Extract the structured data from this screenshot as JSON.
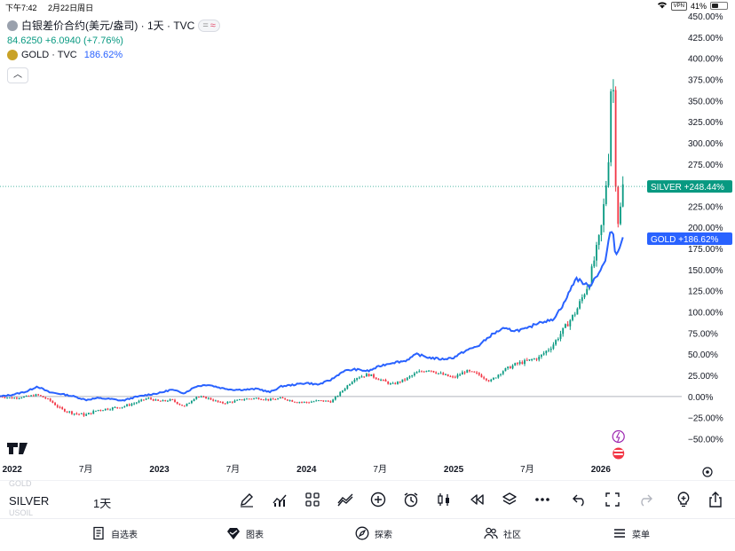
{
  "status_bar": {
    "time": "下午7:42",
    "date": "2月22日周日",
    "vpn": "VPN",
    "battery": "41%"
  },
  "legend": {
    "title": "白银差价合约(美元/盎司) · 1天 · TVC",
    "last_price": "84.6250",
    "change": "+6.0940 (+7.76%)",
    "compare_symbol": "GOLD · TVC",
    "compare_change": "186.62%"
  },
  "price_badges": {
    "silver": {
      "name": "SILVER",
      "value": "+248.44%"
    },
    "gold": {
      "name": "GOLD",
      "value": "+186.62%"
    }
  },
  "chart_data": {
    "type": "line",
    "title": "白银差价合约(美元/盎司) · 1天 · TVC",
    "ylabel": "",
    "ylim": [
      -60,
      450
    ],
    "y_ticks": [
      450,
      425,
      400,
      375,
      350,
      325,
      300,
      275,
      250,
      225,
      200,
      175,
      150,
      125,
      100,
      75,
      50,
      25,
      0,
      -25,
      -50
    ],
    "y_tick_labels": [
      "450.00%",
      "425.00%",
      "400.00%",
      "375.00%",
      "350.00%",
      "325.00%",
      "300.00%",
      "275.00%",
      "250.00%",
      "225.00%",
      "200.00%",
      "175.00%",
      "150.00%",
      "125.00%",
      "100.00%",
      "75.00%",
      "50.00%",
      "25.00%",
      "0.00%",
      "−25.00%",
      "−50.00%"
    ],
    "x_range": [
      2021.917,
      2026.55
    ],
    "x_ticks": [
      {
        "label": "2022",
        "t": 2022.0,
        "year": true
      },
      {
        "label": "7月",
        "t": 2022.5,
        "year": false
      },
      {
        "label": "2023",
        "t": 2023.0,
        "year": true
      },
      {
        "label": "7月",
        "t": 2023.5,
        "year": false
      },
      {
        "label": "2024",
        "t": 2024.0,
        "year": true
      },
      {
        "label": "7月",
        "t": 2024.5,
        "year": false
      },
      {
        "label": "2025",
        "t": 2025.0,
        "year": true
      },
      {
        "label": "7月",
        "t": 2025.5,
        "year": false
      },
      {
        "label": "2026",
        "t": 2026.0,
        "year": true
      }
    ],
    "series": [
      {
        "name": "SILVER",
        "style": "candles",
        "color_up": "#089981",
        "color_down": "#f23645",
        "points": [
          [
            2021.917,
            0
          ],
          [
            2022.0,
            -2
          ],
          [
            2022.1,
            0
          ],
          [
            2022.17,
            2
          ],
          [
            2022.25,
            -4
          ],
          [
            2022.33,
            -15
          ],
          [
            2022.42,
            -20
          ],
          [
            2022.5,
            -22
          ],
          [
            2022.58,
            -16
          ],
          [
            2022.67,
            -14
          ],
          [
            2022.75,
            -12
          ],
          [
            2022.83,
            -8
          ],
          [
            2022.92,
            -2
          ],
          [
            2023.0,
            -6
          ],
          [
            2023.08,
            -4
          ],
          [
            2023.17,
            -12
          ],
          [
            2023.25,
            0
          ],
          [
            2023.33,
            -2
          ],
          [
            2023.42,
            -8
          ],
          [
            2023.5,
            -6
          ],
          [
            2023.58,
            -3
          ],
          [
            2023.67,
            -2
          ],
          [
            2023.75,
            -4
          ],
          [
            2023.83,
            -2
          ],
          [
            2023.92,
            -6
          ],
          [
            2024.0,
            -7
          ],
          [
            2024.08,
            -5
          ],
          [
            2024.17,
            -6
          ],
          [
            2024.25,
            8
          ],
          [
            2024.33,
            22
          ],
          [
            2024.42,
            26
          ],
          [
            2024.5,
            20
          ],
          [
            2024.58,
            14
          ],
          [
            2024.67,
            20
          ],
          [
            2024.75,
            28
          ],
          [
            2024.83,
            32
          ],
          [
            2024.92,
            26
          ],
          [
            2025.0,
            22
          ],
          [
            2025.08,
            30
          ],
          [
            2025.17,
            26
          ],
          [
            2025.25,
            18
          ],
          [
            2025.33,
            30
          ],
          [
            2025.42,
            38
          ],
          [
            2025.5,
            42
          ],
          [
            2025.58,
            46
          ],
          [
            2025.67,
            60
          ],
          [
            2025.75,
            80
          ],
          [
            2025.83,
            100
          ],
          [
            2025.92,
            135
          ],
          [
            2026.0,
            195
          ],
          [
            2026.03,
            240
          ],
          [
            2026.06,
            300
          ],
          [
            2026.07,
            375
          ],
          [
            2026.08,
            395
          ],
          [
            2026.1,
            260
          ],
          [
            2026.12,
            200
          ],
          [
            2026.15,
            248.44
          ]
        ]
      },
      {
        "name": "GOLD",
        "style": "line",
        "color": "#2962ff",
        "points": [
          [
            2021.917,
            0
          ],
          [
            2022.0,
            2
          ],
          [
            2022.1,
            6
          ],
          [
            2022.17,
            12
          ],
          [
            2022.25,
            5
          ],
          [
            2022.33,
            3
          ],
          [
            2022.42,
            0
          ],
          [
            2022.5,
            -4
          ],
          [
            2022.58,
            -2
          ],
          [
            2022.67,
            -3
          ],
          [
            2022.75,
            -5
          ],
          [
            2022.83,
            -1
          ],
          [
            2022.92,
            2
          ],
          [
            2023.0,
            4
          ],
          [
            2023.08,
            8
          ],
          [
            2023.17,
            4
          ],
          [
            2023.25,
            12
          ],
          [
            2023.33,
            14
          ],
          [
            2023.42,
            10
          ],
          [
            2023.5,
            8
          ],
          [
            2023.58,
            8
          ],
          [
            2023.67,
            9
          ],
          [
            2023.75,
            5
          ],
          [
            2023.83,
            12
          ],
          [
            2023.92,
            14
          ],
          [
            2024.0,
            16
          ],
          [
            2024.08,
            14
          ],
          [
            2024.17,
            20
          ],
          [
            2024.25,
            30
          ],
          [
            2024.33,
            32
          ],
          [
            2024.42,
            30
          ],
          [
            2024.5,
            36
          ],
          [
            2024.58,
            40
          ],
          [
            2024.67,
            42
          ],
          [
            2024.75,
            50
          ],
          [
            2024.83,
            46
          ],
          [
            2024.92,
            44
          ],
          [
            2025.0,
            46
          ],
          [
            2025.08,
            54
          ],
          [
            2025.17,
            60
          ],
          [
            2025.25,
            72
          ],
          [
            2025.33,
            80
          ],
          [
            2025.42,
            78
          ],
          [
            2025.5,
            80
          ],
          [
            2025.58,
            88
          ],
          [
            2025.67,
            90
          ],
          [
            2025.75,
            110
          ],
          [
            2025.83,
            140
          ],
          [
            2025.92,
            130
          ],
          [
            2026.0,
            150
          ],
          [
            2026.03,
            160
          ],
          [
            2026.06,
            190
          ],
          [
            2026.08,
            200
          ],
          [
            2026.1,
            165
          ],
          [
            2026.12,
            175
          ],
          [
            2026.15,
            186.62
          ]
        ]
      }
    ]
  },
  "toolbar": {
    "symbol": "SILVER",
    "interval": "1天",
    "ghost_above": "GOLD",
    "ghost_below": "USOIL"
  },
  "bottom_nav": {
    "watchlist": "自选表",
    "chart": "图表",
    "explore": "探索",
    "community": "社区",
    "menu": "菜单"
  },
  "colors": {
    "silver_up": "#089981",
    "silver_down": "#f23645",
    "gold_line": "#2962ff",
    "badge_silver": "#089981",
    "badge_gold": "#2962ff"
  }
}
